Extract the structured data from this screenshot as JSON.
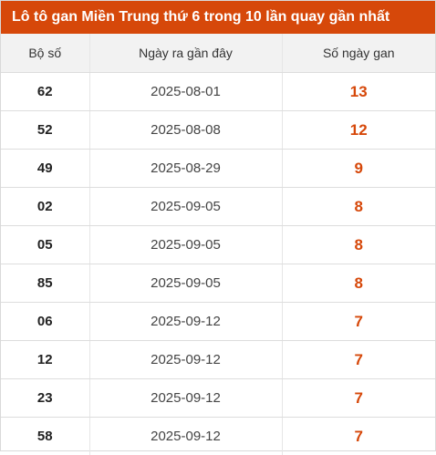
{
  "title": "Lô tô gan Miền Trung thứ 6 trong 10 lần quay gần nhất",
  "colors": {
    "title_bg": "#d6480a",
    "header_bg": "#f2f2f2",
    "days_text": "#d6480a"
  },
  "columns": [
    "Bộ số",
    "Ngày ra gần đây",
    "Số ngày gan"
  ],
  "rows": [
    {
      "number": "62",
      "last_date": "2025-08-01",
      "days": "13"
    },
    {
      "number": "52",
      "last_date": "2025-08-08",
      "days": "12"
    },
    {
      "number": "49",
      "last_date": "2025-08-29",
      "days": "9"
    },
    {
      "number": "02",
      "last_date": "2025-09-05",
      "days": "8"
    },
    {
      "number": "05",
      "last_date": "2025-09-05",
      "days": "8"
    },
    {
      "number": "85",
      "last_date": "2025-09-05",
      "days": "8"
    },
    {
      "number": "06",
      "last_date": "2025-09-12",
      "days": "7"
    },
    {
      "number": "12",
      "last_date": "2025-09-12",
      "days": "7"
    },
    {
      "number": "23",
      "last_date": "2025-09-12",
      "days": "7"
    },
    {
      "number": "58",
      "last_date": "2025-09-12",
      "days": "7"
    }
  ]
}
